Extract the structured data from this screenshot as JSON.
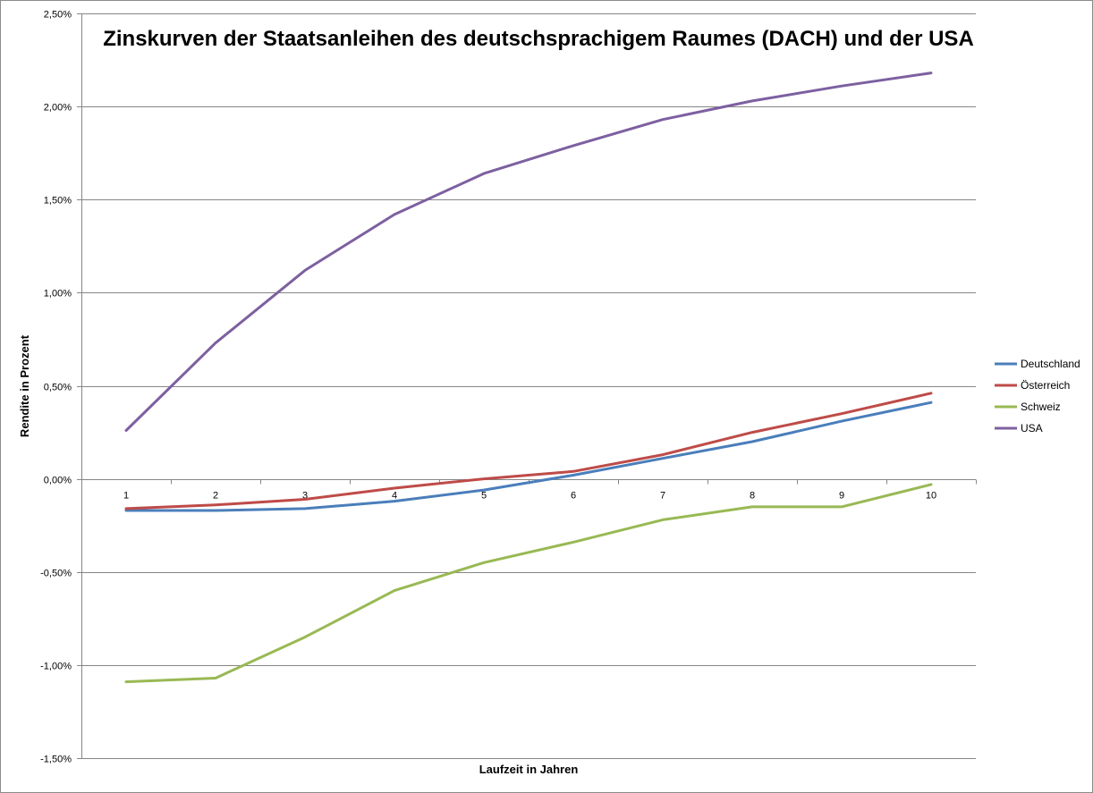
{
  "chart_data": {
    "type": "line",
    "title": "Zinskurven der Staatsanleihen des deutschsprachigem Raumes (DACH) und der USA",
    "xlabel": "Laufzeit in Jahren",
    "ylabel": "Rendite in Prozent",
    "categories": [
      "1",
      "2",
      "3",
      "4",
      "5",
      "6",
      "7",
      "8",
      "9",
      "10"
    ],
    "ylim": [
      -1.5,
      2.5
    ],
    "yticks": [
      2.5,
      2.0,
      1.5,
      1.0,
      0.5,
      0.0,
      -0.5,
      -1.0,
      -1.5
    ],
    "ytick_labels": [
      "2,50%",
      "2,00%",
      "1,50%",
      "1,00%",
      "0,50%",
      "0,00%",
      "-0,50%",
      "-1,00%",
      "-1,50%"
    ],
    "grid": true,
    "legend_position": "right",
    "series": [
      {
        "name": "Deutschland",
        "color": "#4a7ebb",
        "values": [
          -0.17,
          -0.17,
          -0.16,
          -0.12,
          -0.06,
          0.02,
          0.11,
          0.2,
          0.31,
          0.41
        ]
      },
      {
        "name": "Österreich",
        "color": "#be4b48",
        "values": [
          -0.16,
          -0.14,
          -0.11,
          -0.05,
          0.0,
          0.04,
          0.13,
          0.25,
          0.35,
          0.46
        ]
      },
      {
        "name": "Schweiz",
        "color": "#98b954",
        "values": [
          -1.09,
          -1.07,
          -0.85,
          -0.6,
          -0.45,
          -0.34,
          -0.22,
          -0.15,
          -0.15,
          -0.03
        ]
      },
      {
        "name": "USA",
        "color": "#7d60a0",
        "values": [
          0.26,
          0.73,
          1.12,
          1.42,
          1.64,
          1.79,
          1.93,
          2.03,
          2.11,
          2.18
        ]
      }
    ]
  }
}
